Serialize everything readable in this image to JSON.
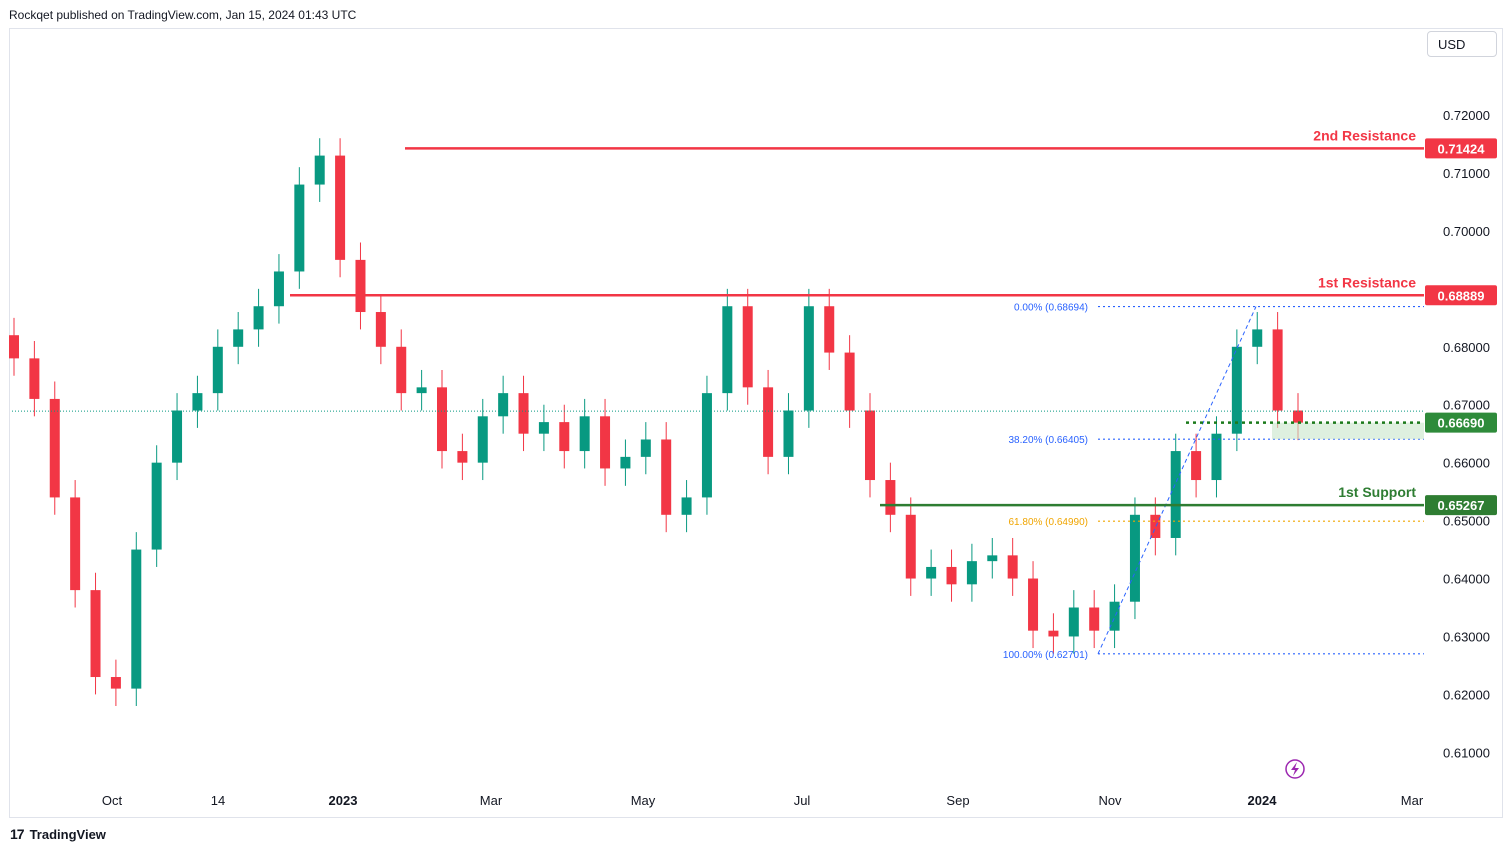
{
  "header": {
    "attribution": "Rockqet published on TradingView.com, Jan 15, 2024 01:43 UTC"
  },
  "toolbar": {
    "currency": "USD"
  },
  "footer": {
    "brand": "TradingView"
  },
  "colors": {
    "up": "#089981",
    "down": "#f23645",
    "resistance": "#f23645",
    "support": "#2e7d32",
    "fib": "#2962ff",
    "fib_golden": "#f0a500"
  },
  "chart_data": {
    "type": "candlestick",
    "title": "",
    "xlabel": "",
    "ylabel": "",
    "ylim": [
      0.6035,
      0.7295
    ],
    "grid": false,
    "y_ticks": [
      "0.72000",
      "0.71000",
      "0.70000",
      "0.68000",
      "0.67000",
      "0.66000",
      "0.65000",
      "0.64000",
      "0.63000",
      "0.62000",
      "0.61000"
    ],
    "x_ticks": [
      {
        "label": "Oct",
        "bold": false
      },
      {
        "label": "14",
        "bold": false
      },
      {
        "label": "2023",
        "bold": true
      },
      {
        "label": "Mar",
        "bold": false
      },
      {
        "label": "May",
        "bold": false
      },
      {
        "label": "Jul",
        "bold": false
      },
      {
        "label": "Sep",
        "bold": false
      },
      {
        "label": "Nov",
        "bold": false
      },
      {
        "label": "2024",
        "bold": true
      },
      {
        "label": "Mar",
        "bold": false
      }
    ],
    "levels": [
      {
        "name": "2nd Resistance",
        "value": 0.71424,
        "label": "0.71424",
        "kind": "resistance"
      },
      {
        "name": "1st Resistance",
        "value": 0.68889,
        "label": "0.68889",
        "kind": "resistance"
      },
      {
        "name": "1st Support",
        "value": 0.65267,
        "label": "0.65267",
        "kind": "support"
      }
    ],
    "current_price": {
      "value": 0.6669,
      "label": "0.66690"
    },
    "fibonacci": [
      {
        "label": "0.00% (0.68694)",
        "value": 0.68694
      },
      {
        "label": "38.20% (0.66405)",
        "value": 0.66405
      },
      {
        "label": "61.80% (0.64990)",
        "value": 0.6499
      },
      {
        "label": "100.00% (0.62701)",
        "value": 0.62701
      }
    ],
    "closes": [
      0.678,
      0.671,
      0.654,
      0.638,
      0.623,
      0.621,
      0.645,
      0.66,
      0.669,
      0.672,
      0.68,
      0.683,
      0.687,
      0.693,
      0.708,
      0.713,
      0.695,
      0.686,
      0.68,
      0.672,
      0.673,
      0.662,
      0.66,
      0.668,
      0.672,
      0.665,
      0.667,
      0.662,
      0.668,
      0.659,
      0.661,
      0.664,
      0.651,
      0.654,
      0.672,
      0.687,
      0.673,
      0.661,
      0.669,
      0.687,
      0.679,
      0.669,
      0.657,
      0.651,
      0.64,
      0.642,
      0.639,
      0.643,
      0.644,
      0.64,
      0.631,
      0.63,
      0.635,
      0.631,
      0.636,
      0.651,
      0.647,
      0.662,
      0.657,
      0.665,
      0.68,
      0.683,
      0.669,
      0.6669
    ]
  }
}
